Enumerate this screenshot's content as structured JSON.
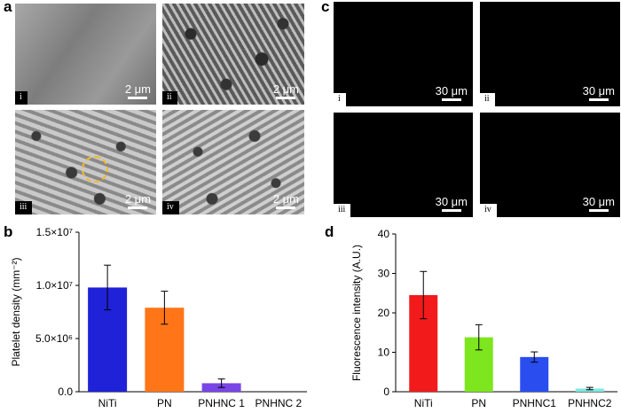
{
  "panels": {
    "a": {
      "letter": "a",
      "images": [
        {
          "label": "i",
          "scale": "2 μm"
        },
        {
          "label": "ii",
          "scale": "2 μm"
        },
        {
          "label": "iii",
          "scale": "2 μm"
        },
        {
          "label": "iv",
          "scale": "2 μm"
        }
      ]
    },
    "c": {
      "letter": "c",
      "images": [
        {
          "label": "i",
          "scale": "30 μm"
        },
        {
          "label": "ii",
          "scale": "30 μm"
        },
        {
          "label": "iii",
          "scale": "30 μm"
        },
        {
          "label": "iv",
          "scale": "30 μm"
        }
      ]
    },
    "b": {
      "letter": "b"
    },
    "d": {
      "letter": "d"
    }
  },
  "chart_data": [
    {
      "id": "b",
      "type": "bar",
      "ylabel": "Platelet density (mm⁻²)",
      "ylim": [
        0,
        15000000
      ],
      "yticks": [
        {
          "value": 0,
          "label": "0.0"
        },
        {
          "value": 5000000,
          "label": "5.0×10⁶"
        },
        {
          "value": 10000000,
          "label": "1.0×10⁷"
        },
        {
          "value": 15000000,
          "label": "1.5×10⁷"
        }
      ],
      "categories": [
        "NiTi",
        "PN",
        "PNHNC 1",
        "PNHNC 2"
      ],
      "values": [
        9800000,
        7900000,
        800000,
        0
      ],
      "errors": [
        2100000,
        1550000,
        400000,
        0
      ],
      "colors": [
        "#1f22d6",
        "#ff7518",
        "#7a45e6",
        "#7a45e6"
      ]
    },
    {
      "id": "d",
      "type": "bar",
      "ylabel": "Fluorescence intensity (A.U.)",
      "ylim": [
        0,
        40
      ],
      "yticks": [
        {
          "value": 0,
          "label": "0"
        },
        {
          "value": 10,
          "label": "10"
        },
        {
          "value": 20,
          "label": "20"
        },
        {
          "value": 30,
          "label": "30"
        },
        {
          "value": 40,
          "label": "40"
        }
      ],
      "categories": [
        "NiTi",
        "PN",
        "PNHNC1",
        "PNHNC2"
      ],
      "values": [
        24.5,
        13.8,
        8.8,
        0.8
      ],
      "errors": [
        6.0,
        3.2,
        1.3,
        0.3
      ],
      "colors": [
        "#f21a1a",
        "#7de61e",
        "#2a4df0",
        "#7fe8e0"
      ]
    }
  ]
}
